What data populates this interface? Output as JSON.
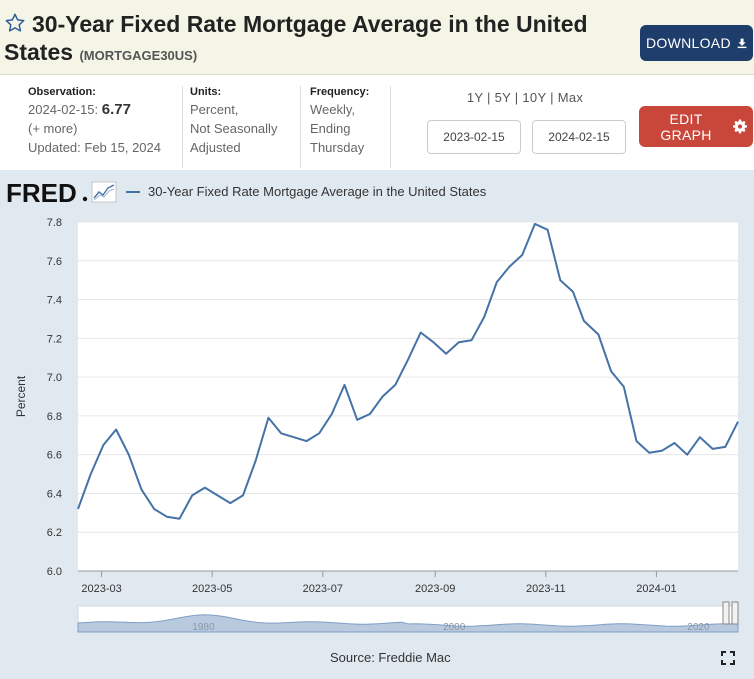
{
  "header": {
    "title": "30-Year Fixed Rate Mortgage Average in the United",
    "title_line2": "States",
    "series_id": "(MORTGAGE30US)",
    "download_label": "DOWNLOAD"
  },
  "meta": {
    "observation_label": "Observation:",
    "observation_date": "2024-02-15:",
    "observation_value": "6.77",
    "more_label": "(+ more)",
    "updated": "Updated: Feb 15, 2024",
    "units_label": "Units:",
    "units_line1": "Percent,",
    "units_line2": "Not Seasonally",
    "units_line3": "Adjusted",
    "frequency_label": "Frequency:",
    "frequency_line1": "Weekly,",
    "frequency_line2": "Ending",
    "frequency_line3": "Thursday"
  },
  "ranges": [
    "1Y",
    "5Y",
    "10Y",
    "Max"
  ],
  "date_start": "2023-02-15",
  "date_end": "2024-02-15",
  "edit_label": "EDIT GRAPH",
  "legend_label": "30-Year Fixed Rate Mortgage Average in the United States",
  "source": "Source: Freddie Mac",
  "colors": {
    "series": "#4572a7",
    "download": "#1f3d6b",
    "edit": "#c8463a",
    "navigator": "#7f9ec4"
  },
  "chart_data": {
    "type": "line",
    "title": "30-Year Fixed Rate Mortgage Average in the United States",
    "xlabel": "",
    "ylabel": "Percent",
    "ylim": [
      6.0,
      7.8
    ],
    "yticks": [
      "6.0",
      "6.2",
      "6.4",
      "6.6",
      "6.8",
      "7.0",
      "7.2",
      "7.4",
      "7.6",
      "7.8"
    ],
    "xticks": [
      "2023-03",
      "2023-05",
      "2023-07",
      "2023-09",
      "2023-11",
      "2024-01"
    ],
    "navigator_labels": [
      "1980",
      "2000",
      "2020"
    ],
    "series": [
      {
        "name": "30-Year Fixed Rate Mortgage Average in the United States",
        "x": [
          "2023-02-16",
          "2023-02-23",
          "2023-03-02",
          "2023-03-09",
          "2023-03-16",
          "2023-03-23",
          "2023-03-30",
          "2023-04-06",
          "2023-04-13",
          "2023-04-20",
          "2023-04-27",
          "2023-05-04",
          "2023-05-11",
          "2023-05-18",
          "2023-05-25",
          "2023-06-01",
          "2023-06-08",
          "2023-06-15",
          "2023-06-22",
          "2023-06-29",
          "2023-07-06",
          "2023-07-13",
          "2023-07-20",
          "2023-07-27",
          "2023-08-03",
          "2023-08-10",
          "2023-08-17",
          "2023-08-24",
          "2023-08-31",
          "2023-09-07",
          "2023-09-14",
          "2023-09-21",
          "2023-09-28",
          "2023-10-05",
          "2023-10-12",
          "2023-10-19",
          "2023-10-26",
          "2023-11-02",
          "2023-11-09",
          "2023-11-16",
          "2023-11-22",
          "2023-11-30",
          "2023-12-07",
          "2023-12-14",
          "2023-12-21",
          "2023-12-28",
          "2024-01-04",
          "2024-01-11",
          "2024-01-18",
          "2024-01-25",
          "2024-02-01",
          "2024-02-08",
          "2024-02-15"
        ],
        "values": [
          6.32,
          6.5,
          6.65,
          6.73,
          6.6,
          6.42,
          6.32,
          6.28,
          6.27,
          6.39,
          6.43,
          6.39,
          6.35,
          6.39,
          6.57,
          6.79,
          6.71,
          6.69,
          6.67,
          6.71,
          6.81,
          6.96,
          6.78,
          6.81,
          6.9,
          6.96,
          7.09,
          7.23,
          7.18,
          7.12,
          7.18,
          7.19,
          7.31,
          7.49,
          7.57,
          7.63,
          7.79,
          7.76,
          7.5,
          7.44,
          7.29,
          7.22,
          7.03,
          6.95,
          6.67,
          6.61,
          6.62,
          6.66,
          6.6,
          6.69,
          6.63,
          6.64,
          6.77
        ]
      }
    ]
  }
}
